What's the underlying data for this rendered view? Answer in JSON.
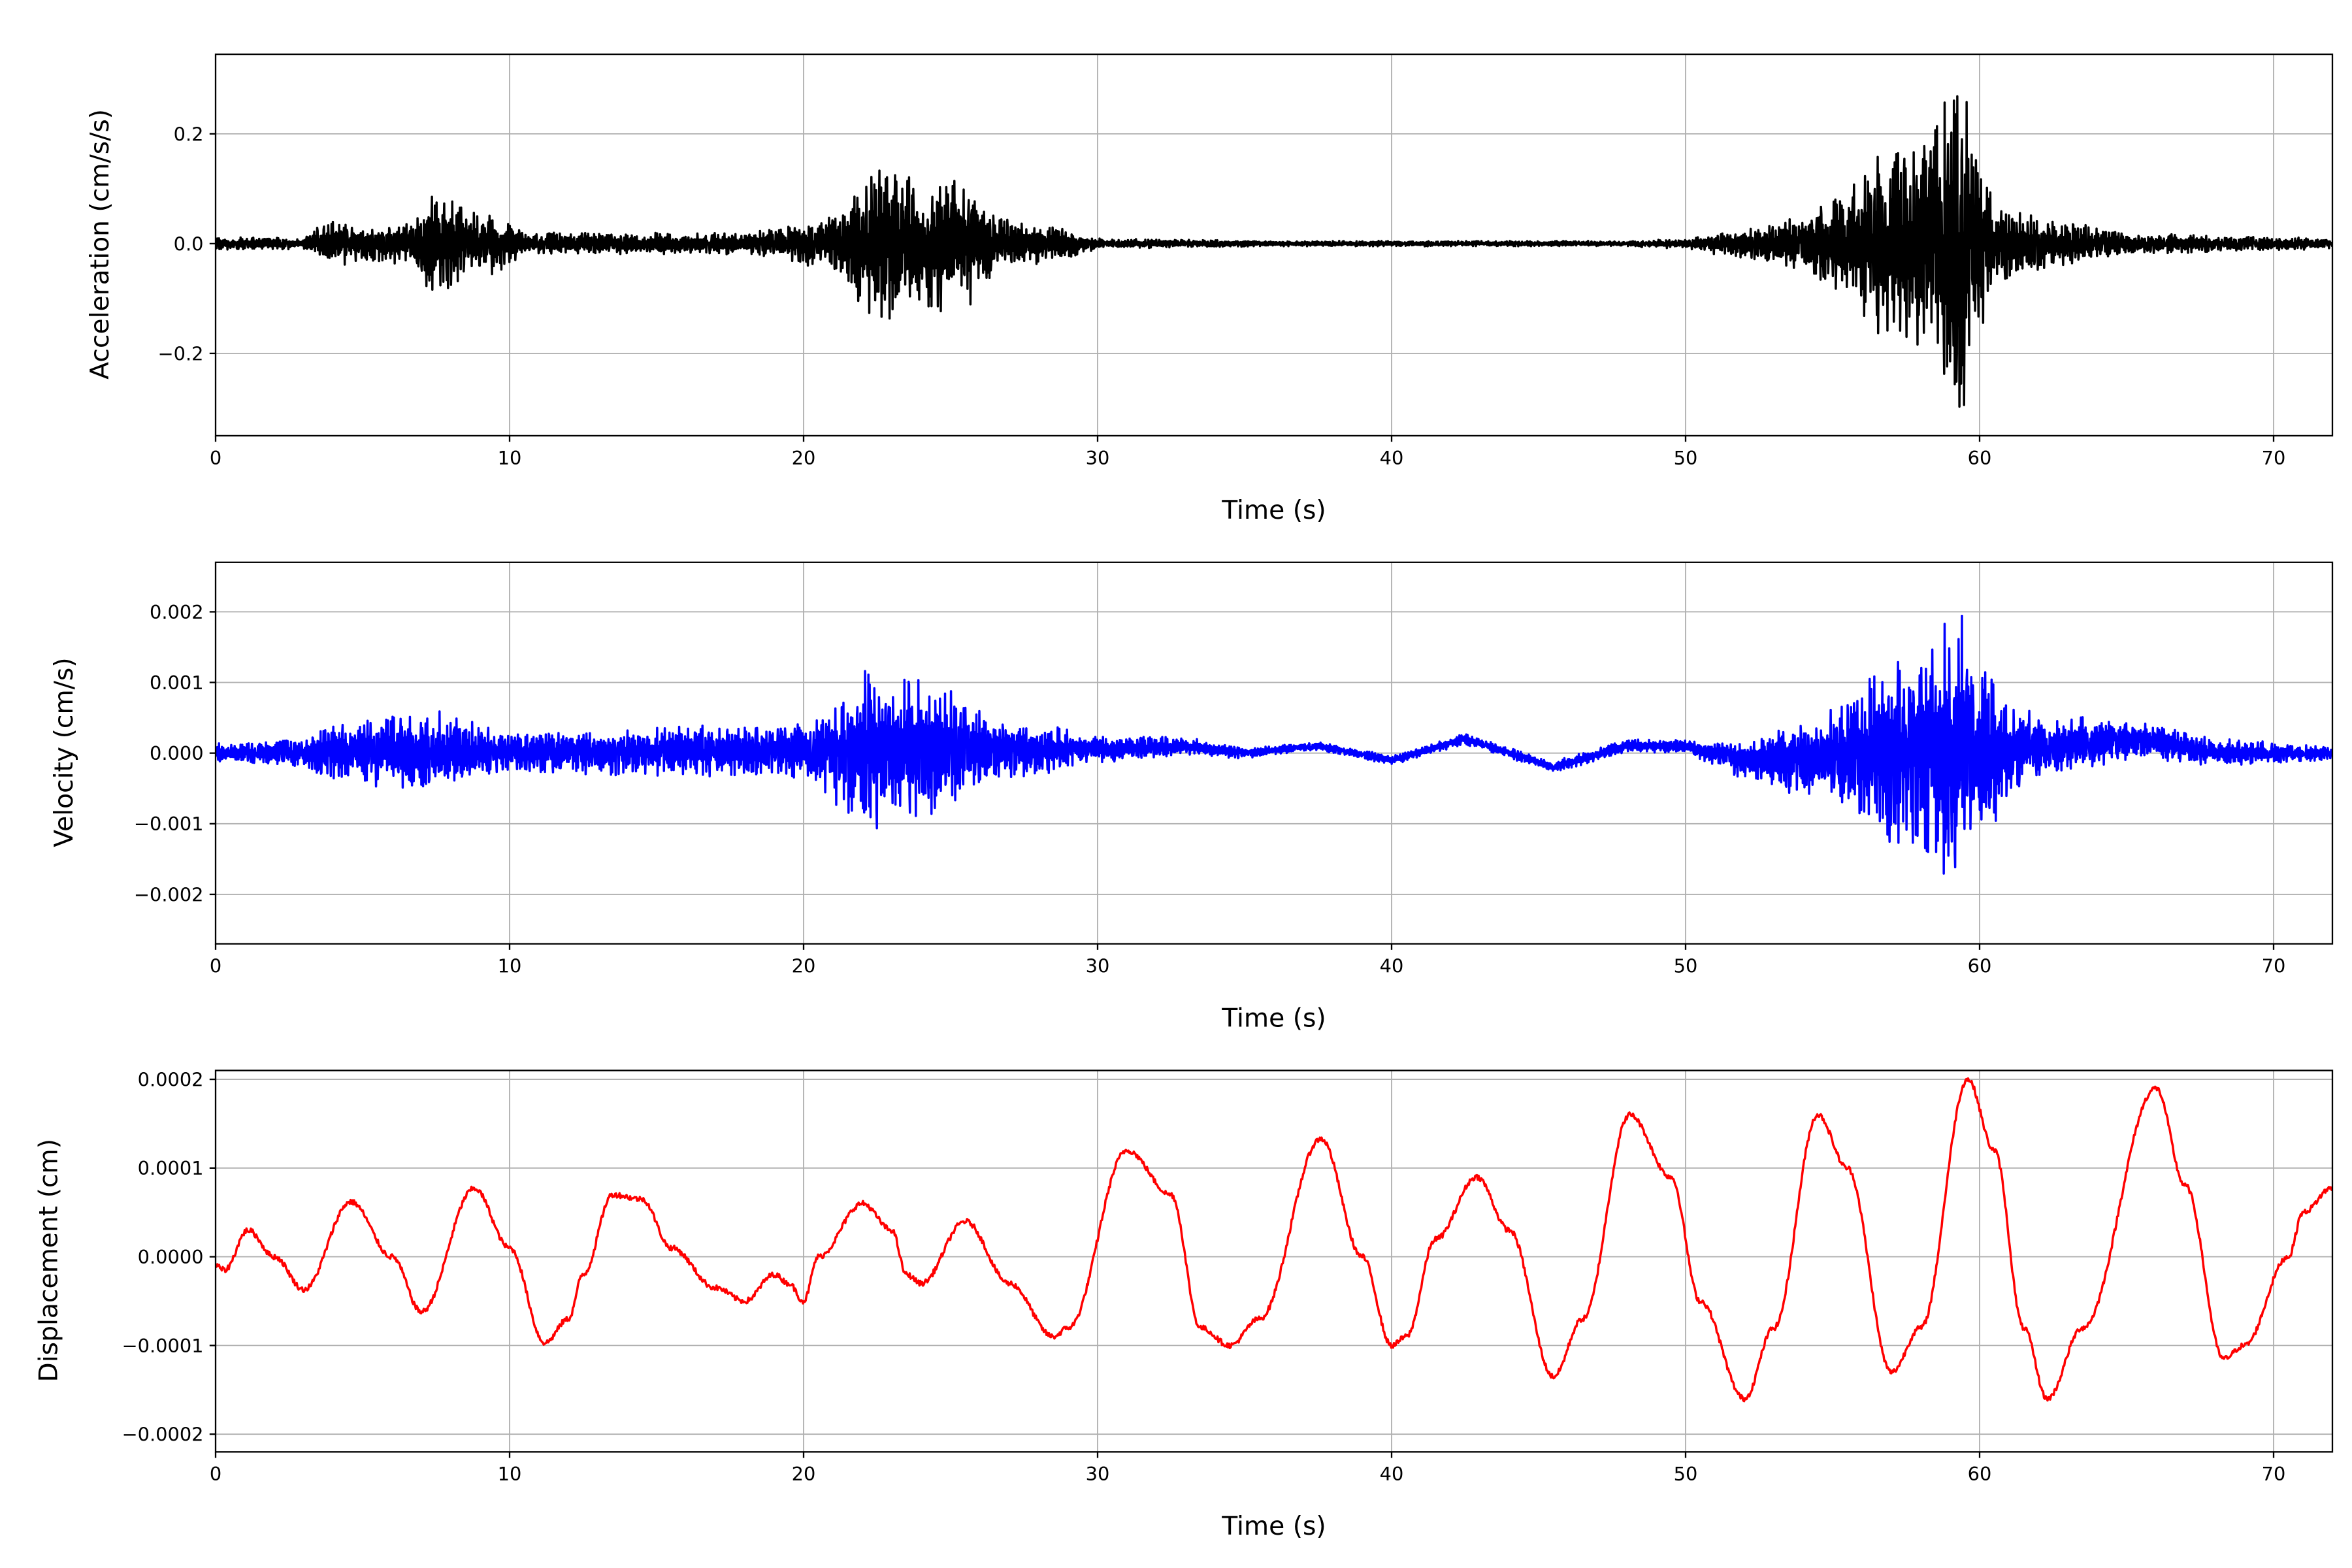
{
  "chart_data": [
    {
      "type": "line",
      "name": "acceleration",
      "xlabel": "Time (s)",
      "ylabel": "Acceleration (cm/s/s)",
      "xlim": [
        0,
        72
      ],
      "ylim": [
        -0.35,
        0.345
      ],
      "xticks": [
        0,
        10,
        20,
        30,
        40,
        50,
        60,
        70
      ],
      "xtick_labels": [
        "0",
        "10",
        "20",
        "30",
        "40",
        "50",
        "60",
        "70"
      ],
      "yticks": [
        0.2,
        0.0,
        -0.2
      ],
      "ytick_labels": [
        "0.2",
        "0.0",
        "−0.2"
      ],
      "grid": true,
      "color": "#000000",
      "signal": "noisy oscillation; amplitude envelope (t, amplitude)",
      "envelope": [
        [
          0,
          0.012
        ],
        [
          3,
          0.01
        ],
        [
          3.5,
          0.04
        ],
        [
          6.5,
          0.04
        ],
        [
          7.5,
          0.11
        ],
        [
          9,
          0.06
        ],
        [
          10,
          0.05
        ],
        [
          10.5,
          0.02
        ],
        [
          18,
          0.02
        ],
        [
          20,
          0.04
        ],
        [
          21.5,
          0.07
        ],
        [
          22.3,
          0.16
        ],
        [
          24,
          0.12
        ],
        [
          25.5,
          0.13
        ],
        [
          26.5,
          0.05
        ],
        [
          29,
          0.03
        ],
        [
          30,
          0.01
        ],
        [
          36,
          0.005
        ],
        [
          48,
          0.005
        ],
        [
          50,
          0.01
        ],
        [
          52,
          0.03
        ],
        [
          54,
          0.05
        ],
        [
          55,
          0.08
        ],
        [
          56.5,
          0.17
        ],
        [
          58,
          0.2
        ],
        [
          59.4,
          0.31
        ],
        [
          60.5,
          0.08
        ],
        [
          62,
          0.05
        ],
        [
          65,
          0.02
        ],
        [
          72,
          0.01
        ]
      ],
      "trend": [
        [
          0,
          0
        ],
        [
          72,
          0
        ]
      ]
    },
    {
      "type": "line",
      "name": "velocity",
      "xlabel": "Time (s)",
      "ylabel": "Velocity (cm/s)",
      "xlim": [
        0,
        72
      ],
      "ylim": [
        -0.0027,
        0.0027
      ],
      "xticks": [
        0,
        10,
        20,
        30,
        40,
        50,
        60,
        70
      ],
      "xtick_labels": [
        "0",
        "10",
        "20",
        "30",
        "40",
        "50",
        "60",
        "70"
      ],
      "yticks": [
        0.002,
        0.001,
        0.0,
        -0.001,
        -0.002
      ],
      "ytick_labels": [
        "0.002",
        "0.001",
        "0.000",
        "−0.001",
        "−0.002"
      ],
      "grid": true,
      "color": "#0000ff",
      "signal": "noisy oscillation; amplitude envelope (t, amplitude)",
      "envelope": [
        [
          0,
          0.00015
        ],
        [
          3,
          0.0002
        ],
        [
          3.5,
          0.0004
        ],
        [
          7.5,
          0.0006
        ],
        [
          10,
          0.0003
        ],
        [
          20,
          0.0004
        ],
        [
          22.3,
          0.0012
        ],
        [
          25,
          0.0009
        ],
        [
          26.5,
          0.0005
        ],
        [
          30,
          0.0002
        ],
        [
          36,
          6e-05
        ],
        [
          50,
          0.0001
        ],
        [
          52,
          0.0003
        ],
        [
          55,
          0.0007
        ],
        [
          56.5,
          0.0013
        ],
        [
          59.4,
          0.002
        ],
        [
          61,
          0.0006
        ],
        [
          65,
          0.0003
        ],
        [
          72,
          0.0001
        ]
      ],
      "trend": [
        [
          0,
          0
        ],
        [
          30,
          5e-05
        ],
        [
          33,
          0.0001
        ],
        [
          35,
          0
        ],
        [
          37.5,
          0.0001
        ],
        [
          40,
          -0.0001
        ],
        [
          42.5,
          0.0002
        ],
        [
          45.5,
          -0.0002
        ],
        [
          48,
          0.0001
        ],
        [
          50,
          0.0001
        ],
        [
          52,
          -0.0001
        ],
        [
          60,
          0
        ],
        [
          65.5,
          0.0002
        ],
        [
          68,
          0
        ],
        [
          72,
          0
        ]
      ]
    },
    {
      "type": "line",
      "name": "displacement",
      "xlabel": "Time (s)",
      "ylabel": "Displacement (cm)",
      "xlim": [
        0,
        72
      ],
      "ylim": [
        -0.00022,
        0.00021
      ],
      "xticks": [
        0,
        10,
        20,
        30,
        40,
        50,
        60,
        70
      ],
      "xtick_labels": [
        "0",
        "10",
        "20",
        "30",
        "40",
        "50",
        "60",
        "70"
      ],
      "yticks": [
        0.0002,
        0.0001,
        0.0,
        -0.0001,
        -0.0002
      ],
      "ytick_labels": [
        "0.0002",
        "0.0001",
        "0.0000",
        "−0.0001",
        "−0.0002"
      ],
      "grid": true,
      "color": "#ff0000",
      "signal": "extrema points (t, value x 1e-4)",
      "points": [
        [
          0,
          -0.1
        ],
        [
          0.3,
          -0.15
        ],
        [
          1.1,
          0.3
        ],
        [
          2.0,
          0.0
        ],
        [
          3,
          -0.37
        ],
        [
          4.6,
          0.62
        ],
        [
          6,
          0
        ],
        [
          7,
          -0.62
        ],
        [
          8.8,
          0.77
        ],
        [
          10,
          0.1
        ],
        [
          11.2,
          -0.97
        ],
        [
          12,
          -0.7
        ],
        [
          12.5,
          -0.2
        ],
        [
          13.5,
          0.7
        ],
        [
          14.5,
          0.65
        ],
        [
          15.5,
          0.1
        ],
        [
          17,
          -0.35
        ],
        [
          18,
          -0.5
        ],
        [
          19,
          -0.2
        ],
        [
          19.5,
          -0.3
        ],
        [
          20,
          -0.5
        ],
        [
          20.5,
          0
        ],
        [
          22,
          0.6
        ],
        [
          23,
          0.3
        ],
        [
          23.5,
          -0.2
        ],
        [
          24,
          -0.3
        ],
        [
          25.5,
          0.4
        ],
        [
          27,
          -0.3
        ],
        [
          28.5,
          -0.9
        ],
        [
          29,
          -0.8
        ],
        [
          31,
          1.2
        ],
        [
          32.5,
          0.7
        ],
        [
          33.5,
          -0.8
        ],
        [
          34.5,
          -1.0
        ],
        [
          35.5,
          -0.7
        ],
        [
          37.6,
          1.33
        ],
        [
          39,
          0
        ],
        [
          40,
          -1.0
        ],
        [
          40.5,
          -0.9
        ],
        [
          41.5,
          0.2
        ],
        [
          42.9,
          0.9
        ],
        [
          44,
          0.3
        ],
        [
          45.5,
          -1.35
        ],
        [
          46.5,
          -0.7
        ],
        [
          48.1,
          1.6
        ],
        [
          49.5,
          0.9
        ],
        [
          50.5,
          -0.5
        ],
        [
          52,
          -1.6
        ],
        [
          53,
          -0.8
        ],
        [
          54.5,
          1.6
        ],
        [
          55.5,
          1.0
        ],
        [
          57,
          -1.3
        ],
        [
          58,
          -0.8
        ],
        [
          59.6,
          2.0
        ],
        [
          60.5,
          1.2
        ],
        [
          61.5,
          -0.8
        ],
        [
          62.3,
          -1.6
        ],
        [
          63.5,
          -0.8
        ],
        [
          66,
          1.9
        ],
        [
          67,
          0.8
        ],
        [
          68.3,
          -1.15
        ],
        [
          69,
          -1.0
        ],
        [
          70.5,
          0.0
        ],
        [
          71,
          0.5
        ],
        [
          72,
          0.78
        ]
      ]
    }
  ]
}
